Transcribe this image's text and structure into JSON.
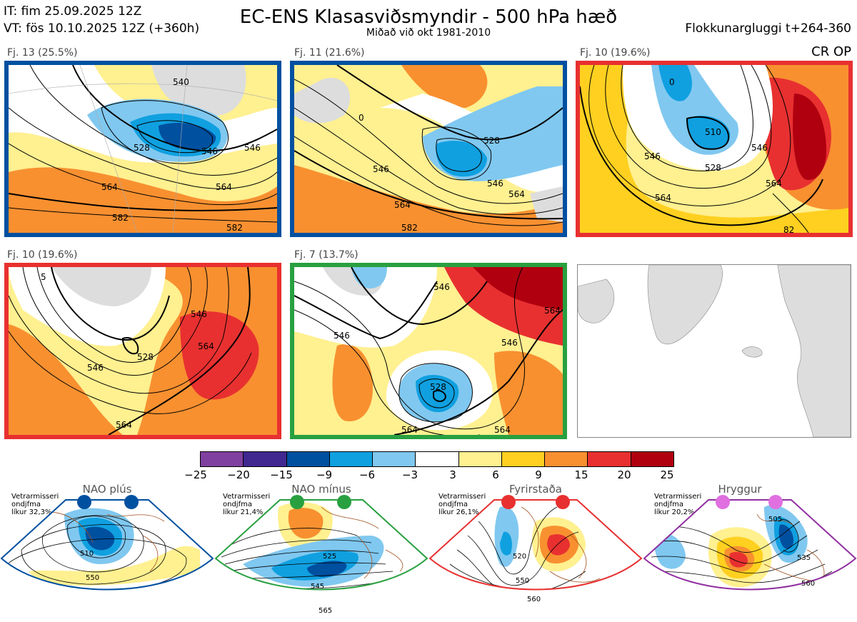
{
  "header": {
    "it_line": "IT: fim 25.09.2025 12Z",
    "vt_line": "VT: fös 10.10.2025 12Z  (+360h)",
    "title": "EC-ENS Klasasviðsmyndir - 500 hPa hæð",
    "subtitle": "Miðað við okt 1981-2010",
    "window": "Flokkunargluggi t+264-360",
    "cr_op": "CR OP"
  },
  "panels": [
    {
      "label": "Fj. 13 (25.5%)",
      "border": "#0050a0",
      "contours": [
        "540",
        "546",
        "528",
        "546",
        "564",
        "564",
        "582",
        "582"
      ]
    },
    {
      "label": "Fj. 11 (21.6%)",
      "border": "#0050a0",
      "contours": [
        "0",
        "528",
        "546",
        "564",
        "546",
        "564",
        "582"
      ]
    },
    {
      "label": "Fj. 10 (19.6%)",
      "border": "#e83030",
      "contours": [
        "0",
        "510",
        "528",
        "546",
        "564",
        "546",
        "564",
        "82"
      ]
    },
    {
      "label": "Fj. 10 (19.6%)",
      "border": "#e83030",
      "contours": [
        "5",
        "546",
        "528",
        "546",
        "564",
        "564"
      ]
    },
    {
      "label": "Fj. 7 (13.7%)",
      "border": "#28a040",
      "contours": [
        "546",
        "546",
        "546",
        "564",
        "528",
        "564",
        "564"
      ]
    }
  ],
  "colorbar": {
    "colors": [
      "#8040a0",
      "#402890",
      "#0050a0",
      "#10a0e0",
      "#80c8f0",
      "#ffffff",
      "#fff090",
      "#ffd020",
      "#f89030",
      "#e83030",
      "#b00010"
    ],
    "labels": [
      "−25",
      "−20",
      "−15",
      "−9",
      "−6",
      "−3",
      "3",
      "6",
      "9",
      "15",
      "20",
      "25"
    ]
  },
  "regimes": [
    {
      "name": "NAO plús",
      "stat": [
        "Vetrarmisseri",
        "ondjfma",
        "líkur 32,3%"
      ],
      "dot_color": "#0050a0",
      "border": "#0050a0",
      "contours": [
        "510",
        "550"
      ]
    },
    {
      "name": "NAO mínus",
      "stat": [
        "Vetrarmisseri",
        "ondjfma",
        "líkur 21,4%"
      ],
      "dot_color": "#28a040",
      "border": "#28a040",
      "contours": [
        "525",
        "545",
        "565"
      ]
    },
    {
      "name": "Fyrirstaða",
      "stat": [
        "Vetrarmisseri",
        "ondjfma",
        "líkur 26,1%"
      ],
      "dot_color": "#e83030",
      "border": "#e83030",
      "contours": [
        "520",
        "550",
        "560"
      ]
    },
    {
      "name": "Hryggur",
      "stat": [
        "Vetrarmisseri",
        "ondjfma",
        "líkur 20,2%"
      ],
      "dot_color": "#e070e0",
      "border": "#9030a0",
      "contours": [
        "505",
        "535",
        "560"
      ]
    }
  ]
}
